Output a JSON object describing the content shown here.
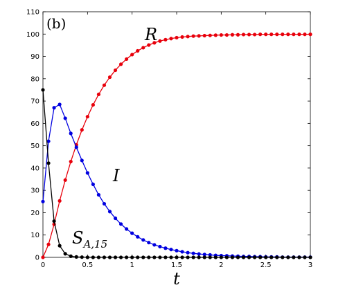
{
  "chart_data": {
    "type": "line",
    "panel_label": "(b)",
    "xlabel": "t",
    "ylabel": "",
    "xlim": [
      0,
      3
    ],
    "ylim": [
      0,
      110
    ],
    "xticks": [
      0,
      0.5,
      1,
      1.5,
      2,
      2.5,
      3
    ],
    "xtick_labels": [
      "0",
      "0.5",
      "1",
      "1.5",
      "2",
      "2.5",
      "3"
    ],
    "yticks": [
      0,
      10,
      20,
      30,
      40,
      50,
      60,
      70,
      80,
      90,
      100,
      110
    ],
    "ytick_labels": [
      "0",
      "10",
      "20",
      "30",
      "40",
      "50",
      "60",
      "70",
      "80",
      "90",
      "100",
      "110"
    ],
    "grid": false,
    "x": [
      0,
      0.0625,
      0.125,
      0.1875,
      0.25,
      0.3125,
      0.375,
      0.4375,
      0.5,
      0.5625,
      0.625,
      0.6875,
      0.75,
      0.8125,
      0.875,
      0.9375,
      1,
      1.0625,
      1.125,
      1.1875,
      1.25,
      1.3125,
      1.375,
      1.4375,
      1.5,
      1.5625,
      1.625,
      1.6875,
      1.75,
      1.8125,
      1.875,
      1.9375,
      2,
      2.0625,
      2.125,
      2.1875,
      2.25,
      2.3125,
      2.375,
      2.4375,
      2.5,
      2.5625,
      2.625,
      2.6875,
      2.75,
      2.8125,
      2.875,
      2.9375,
      3
    ],
    "series": [
      {
        "label": "R",
        "color": "#e8000b",
        "values": [
          0,
          5.8,
          14.8,
          25.3,
          34.6,
          42.9,
          50.4,
          57.1,
          63.0,
          68.3,
          73.0,
          77.1,
          80.7,
          83.8,
          86.5,
          88.8,
          90.8,
          92.5,
          93.9,
          95.1,
          96.1,
          96.9,
          97.5,
          98.0,
          98.4,
          98.7,
          98.9,
          99.1,
          99.2,
          99.3,
          99.4,
          99.5,
          99.6,
          99.6,
          99.7,
          99.7,
          99.8,
          99.8,
          99.8,
          99.9,
          99.9,
          99.9,
          99.9,
          99.9,
          99.9,
          99.9,
          99.9,
          99.9,
          99.9
        ]
      },
      {
        "label": "I",
        "color": "#0000e0",
        "values": [
          25,
          52,
          67,
          68.5,
          62.3,
          55.5,
          49.3,
          43.4,
          37.8,
          32.7,
          28.0,
          24.0,
          20.5,
          17.5,
          14.9,
          12.7,
          10.8,
          9.2,
          7.8,
          6.6,
          5.6,
          4.8,
          4.1,
          3.5,
          3.0,
          2.5,
          2.1,
          1.8,
          1.5,
          1.3,
          1.1,
          0.9,
          0.8,
          0.7,
          0.6,
          0.5,
          0.4,
          0.4,
          0.3,
          0.3,
          0.2,
          0.2,
          0.2,
          0.1,
          0.1,
          0.1,
          0.1,
          0.1,
          0.1
        ]
      },
      {
        "label": "S_{A,15}",
        "color": "#000000",
        "values": [
          75,
          42.2,
          16.2,
          5.2,
          1.6,
          0.5,
          0.2,
          0.1,
          0,
          0,
          0,
          0,
          0,
          0,
          0,
          0,
          0,
          0,
          0,
          0,
          0,
          0,
          0,
          0,
          0,
          0,
          0,
          0,
          0,
          0,
          0,
          0,
          0,
          0,
          0,
          0,
          0,
          0,
          0,
          0,
          0,
          0,
          0,
          0,
          0,
          0,
          0,
          0,
          0
        ]
      }
    ],
    "annotations": {
      "R": "R",
      "I": "I",
      "S_main": "S",
      "S_sub": "A,15"
    }
  }
}
